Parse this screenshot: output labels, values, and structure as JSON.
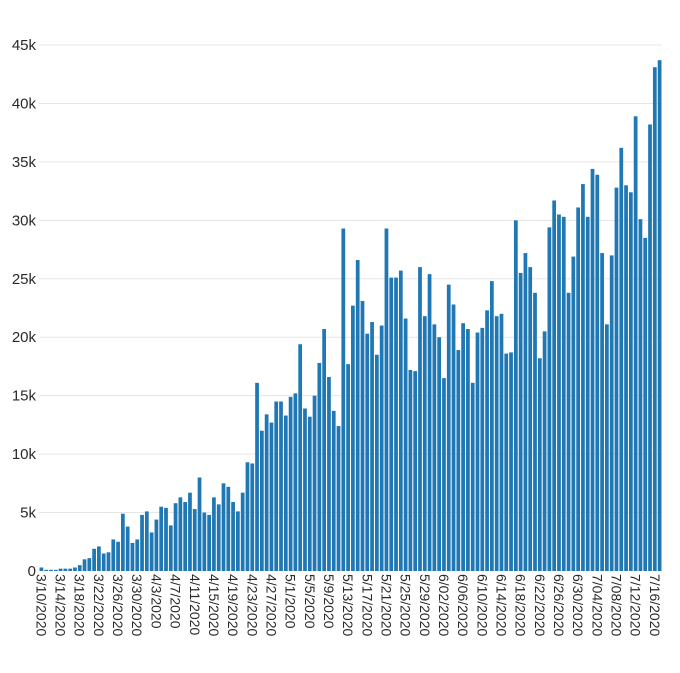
{
  "chart_data": {
    "type": "bar",
    "title": "",
    "xlabel": "",
    "ylabel": "",
    "ylim": [
      0,
      45000
    ],
    "grid": true,
    "bar_color": "#1f77b4",
    "y_ticks": [
      0,
      5000,
      10000,
      15000,
      20000,
      25000,
      30000,
      35000,
      40000,
      45000
    ],
    "y_tick_labels": [
      "0",
      "5k",
      "10k",
      "15k",
      "20k",
      "25k",
      "30k",
      "35k",
      "40k",
      "45k"
    ],
    "x_tick_labels": [
      "3/10/2020",
      "3/14/2020",
      "3/18/2020",
      "3/22/2020",
      "3/26/2020",
      "3/30/2020",
      "4/3/2020",
      "4/7/2020",
      "4/11/2020",
      "4/15/2020",
      "4/19/2020",
      "4/23/2020",
      "4/27/2020",
      "5/1/2020",
      "5/5/2020",
      "5/9/2020",
      "5/13/2020",
      "5/17/2020",
      "5/21/2020",
      "5/25/2020",
      "5/29/2020",
      "6/02/2020",
      "6/06/2020",
      "6/10/2020",
      "6/14/2020",
      "6/18/2020",
      "6/22/2020",
      "6/26/2020",
      "6/30/2020",
      "7/04/2020",
      "7/08/2020",
      "7/12/2020",
      "7/16/2020"
    ],
    "x_tick_every": 4,
    "values": [
      300,
      100,
      100,
      100,
      200,
      200,
      200,
      300,
      500,
      1000,
      1100,
      1900,
      2100,
      1500,
      1600,
      2700,
      2500,
      4900,
      3800,
      2400,
      2700,
      4800,
      5100,
      3300,
      4400,
      5500,
      5400,
      3900,
      5800,
      6300,
      5900,
      6700,
      5300,
      8000,
      5000,
      4800,
      6300,
      5700,
      7500,
      7200,
      5900,
      5100,
      6700,
      9300,
      9200,
      16100,
      12000,
      13400,
      12700,
      14500,
      14500,
      13300,
      14900,
      15200,
      19400,
      13900,
      13200,
      15000,
      17800,
      20700,
      16600,
      13700,
      12400,
      29300,
      17700,
      22700,
      26600,
      23100,
      20300,
      21300,
      18500,
      21000,
      29300,
      25100,
      25100,
      25700,
      21600,
      17200,
      17100,
      26000,
      21800,
      25400,
      21100,
      20000,
      16500,
      24500,
      22800,
      18900,
      21200,
      20700,
      16100,
      20400,
      20800,
      22300,
      24800,
      21800,
      22000,
      18600,
      18700,
      30000,
      25500,
      27200,
      26000,
      23800,
      18200,
      20500,
      29400,
      31700,
      30500,
      30300,
      23800,
      26900,
      31100,
      33100,
      30300,
      34400,
      33900,
      27200,
      21100,
      27000,
      32800,
      36200,
      33000,
      32400,
      38900,
      30100,
      28500,
      38200,
      43100,
      43700
    ]
  }
}
